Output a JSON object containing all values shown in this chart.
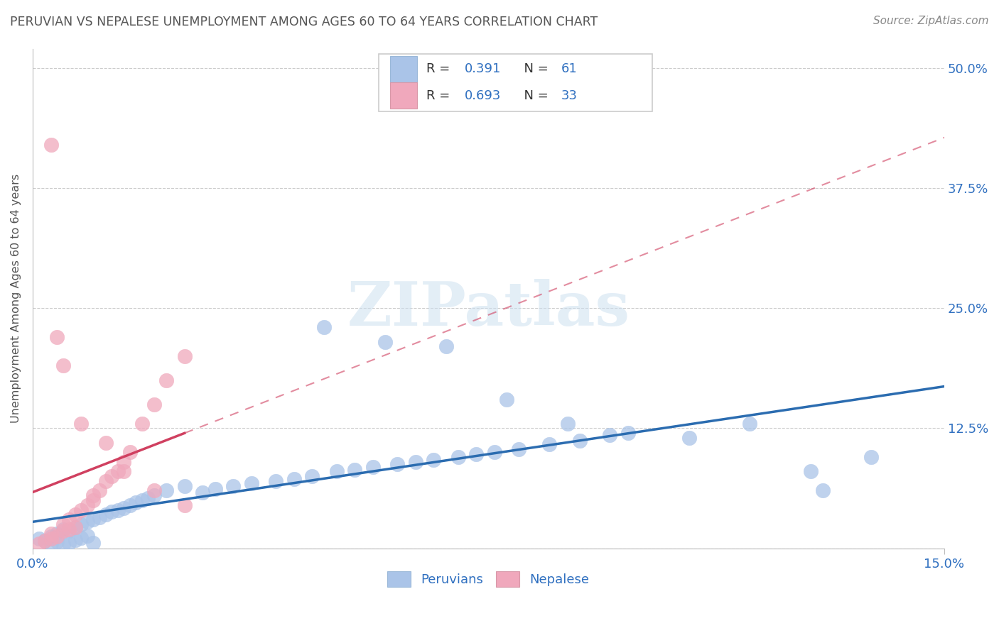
{
  "title": "PERUVIAN VS NEPALESE UNEMPLOYMENT AMONG AGES 60 TO 64 YEARS CORRELATION CHART",
  "source": "Source: ZipAtlas.com",
  "ylabel": "Unemployment Among Ages 60 to 64 years",
  "peruvian_R": "0.391",
  "peruvian_N": "61",
  "nepalese_R": "0.693",
  "nepalese_N": "33",
  "peruvian_color": "#aac4e8",
  "nepalese_color": "#f0a8bc",
  "peruvian_line_color": "#2b6cb0",
  "nepalese_line_color": "#d04060",
  "title_color": "#555555",
  "source_color": "#888888",
  "label_color": "#3070c0",
  "grid_color": "#cccccc",
  "background_color": "#ffffff",
  "xlim": [
    0.0,
    0.15
  ],
  "ylim": [
    0.0,
    0.52
  ],
  "y_ticks": [
    0.0,
    0.125,
    0.25,
    0.375,
    0.5
  ],
  "y_labels": [
    "",
    "12.5%",
    "25.0%",
    "37.5%",
    "50.0%"
  ],
  "peru_x": [
    0.001,
    0.002,
    0.003,
    0.003,
    0.004,
    0.004,
    0.005,
    0.005,
    0.006,
    0.006,
    0.007,
    0.007,
    0.008,
    0.008,
    0.009,
    0.009,
    0.01,
    0.01,
    0.011,
    0.012,
    0.013,
    0.014,
    0.015,
    0.016,
    0.017,
    0.018,
    0.019,
    0.02,
    0.022,
    0.025,
    0.028,
    0.03,
    0.033,
    0.036,
    0.04,
    0.043,
    0.046,
    0.05,
    0.053,
    0.056,
    0.06,
    0.063,
    0.066,
    0.07,
    0.073,
    0.076,
    0.08,
    0.085,
    0.09,
    0.095,
    0.048,
    0.058,
    0.068,
    0.078,
    0.088,
    0.098,
    0.108,
    0.118,
    0.128,
    0.138,
    0.13
  ],
  "peru_y": [
    0.01,
    0.008,
    0.012,
    0.005,
    0.015,
    0.007,
    0.02,
    0.004,
    0.018,
    0.006,
    0.022,
    0.009,
    0.025,
    0.011,
    0.028,
    0.013,
    0.03,
    0.006,
    0.032,
    0.035,
    0.038,
    0.04,
    0.042,
    0.045,
    0.048,
    0.05,
    0.052,
    0.055,
    0.06,
    0.065,
    0.058,
    0.062,
    0.065,
    0.068,
    0.07,
    0.072,
    0.075,
    0.08,
    0.082,
    0.085,
    0.088,
    0.09,
    0.092,
    0.095,
    0.098,
    0.1,
    0.103,
    0.108,
    0.112,
    0.118,
    0.23,
    0.215,
    0.21,
    0.155,
    0.13,
    0.12,
    0.115,
    0.13,
    0.08,
    0.095,
    0.06
  ],
  "nep_x": [
    0.001,
    0.002,
    0.003,
    0.003,
    0.004,
    0.005,
    0.005,
    0.006,
    0.006,
    0.007,
    0.007,
    0.008,
    0.009,
    0.01,
    0.01,
    0.011,
    0.012,
    0.013,
    0.014,
    0.015,
    0.016,
    0.018,
    0.02,
    0.022,
    0.025,
    0.003,
    0.004,
    0.005,
    0.008,
    0.012,
    0.015,
    0.02,
    0.025
  ],
  "nep_y": [
    0.005,
    0.008,
    0.01,
    0.015,
    0.012,
    0.018,
    0.025,
    0.02,
    0.03,
    0.022,
    0.035,
    0.04,
    0.045,
    0.05,
    0.055,
    0.06,
    0.07,
    0.075,
    0.08,
    0.09,
    0.1,
    0.13,
    0.15,
    0.175,
    0.2,
    0.42,
    0.22,
    0.19,
    0.13,
    0.11,
    0.08,
    0.06,
    0.045
  ]
}
